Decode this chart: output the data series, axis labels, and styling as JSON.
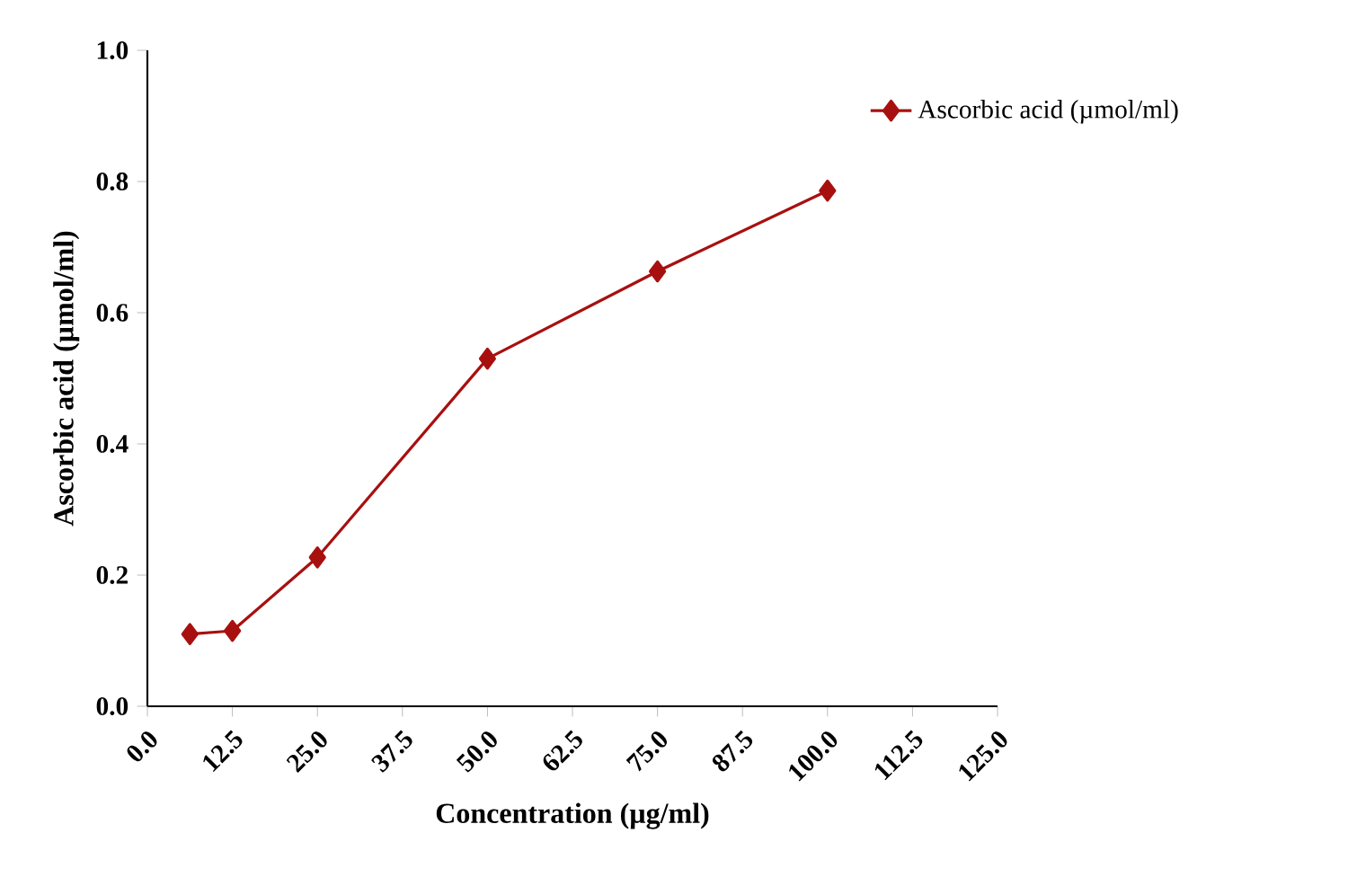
{
  "chart_data": {
    "type": "line",
    "xlabel": "Concentration (µg/ml)",
    "ylabel": "Ascorbic acid (µmol/ml)",
    "series": [
      {
        "name": "Ascorbic acid (µmol/ml)",
        "color": "#a81010",
        "x": [
          6.25,
          12.5,
          25,
          50,
          75,
          100
        ],
        "values": [
          0.11,
          0.115,
          0.227,
          0.53,
          0.663,
          0.786
        ]
      }
    ],
    "xlim": [
      0,
      125
    ],
    "ylim": [
      0,
      1
    ],
    "xticks": [
      {
        "value": 0,
        "label": "0.0"
      },
      {
        "value": 12.5,
        "label": "12.5"
      },
      {
        "value": 25,
        "label": "25.0"
      },
      {
        "value": 37.5,
        "label": "37.5"
      },
      {
        "value": 50,
        "label": "50.0"
      },
      {
        "value": 62.5,
        "label": "62.5"
      },
      {
        "value": 75,
        "label": "75.0"
      },
      {
        "value": 87.5,
        "label": "87.5"
      },
      {
        "value": 100,
        "label": "100.0"
      },
      {
        "value": 112.5,
        "label": "112.5"
      },
      {
        "value": 125,
        "label": "125.0"
      }
    ],
    "yticks": [
      {
        "value": 0,
        "label": "0.0"
      },
      {
        "value": 0.2,
        "label": "0.2"
      },
      {
        "value": 0.4,
        "label": "0.4"
      },
      {
        "value": 0.6,
        "label": "0.6"
      },
      {
        "value": 0.8,
        "label": "0.8"
      },
      {
        "value": 1,
        "label": "1.0"
      }
    ],
    "legend": "top right",
    "marker": "diamond",
    "line_style": "solid",
    "grid": false
  }
}
